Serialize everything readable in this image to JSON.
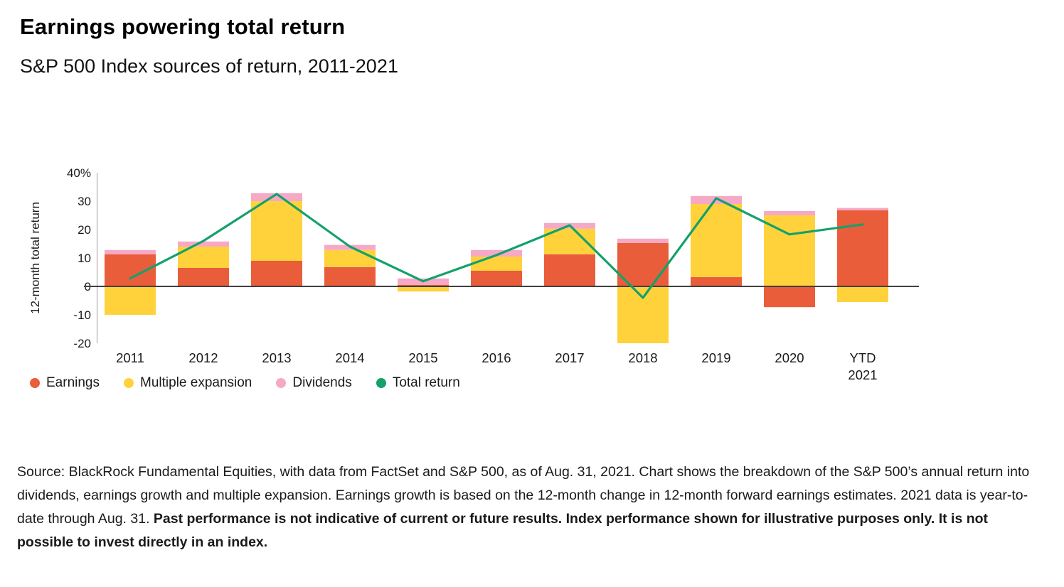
{
  "header": {
    "title": "Earnings powering total return",
    "subtitle": "S&P 500 Index sources of return, 2011-2021"
  },
  "chart_data": {
    "type": "bar",
    "stacked": true,
    "title": "Earnings powering total return",
    "subtitle": "S&P 500 Index sources of return, 2011-2021",
    "ylabel": "12-month total return",
    "ylim": [
      -20,
      40
    ],
    "grid": false,
    "legend_position": "bottom",
    "yticks": [
      {
        "value": 40,
        "label": "40%"
      },
      {
        "value": 30,
        "label": "30"
      },
      {
        "value": 20,
        "label": "20"
      },
      {
        "value": 10,
        "label": "10"
      },
      {
        "value": 0,
        "label": "0"
      },
      {
        "value": -10,
        "label": "-10"
      },
      {
        "value": -20,
        "label": "-20"
      }
    ],
    "categories": [
      "2011",
      "2012",
      "2013",
      "2014",
      "2015",
      "2016",
      "2017",
      "2018",
      "2019",
      "2020",
      "YTD\n2021"
    ],
    "series": [
      {
        "name": "Earnings",
        "type": "bar",
        "color": "#EA5D3B",
        "values": [
          11.3,
          6.5,
          9,
          6.8,
          0.5,
          5.5,
          11.3,
          15.3,
          3.3,
          -7.3,
          26.8
        ]
      },
      {
        "name": "Multiple expansion",
        "type": "bar",
        "color": "#FFD23B",
        "values": [
          -10,
          7.5,
          21,
          6,
          -1.8,
          5,
          9,
          -20,
          25.7,
          25,
          -5.5
        ]
      },
      {
        "name": "Dividends",
        "type": "bar",
        "color": "#F5A9C6",
        "values": [
          1.5,
          1.8,
          2.8,
          1.8,
          2.3,
          2.3,
          2,
          1.5,
          2.8,
          1.5,
          0.8
        ]
      },
      {
        "name": "Total return",
        "type": "line",
        "color": "#14A16B",
        "values": [
          2.8,
          16,
          32.5,
          14,
          1.8,
          11,
          21.5,
          -4,
          31,
          18.3,
          21.8
        ]
      }
    ]
  },
  "footnote": {
    "regular": "Source: BlackRock Fundamental Equities, with data from FactSet and S&P 500, as of Aug. 31, 2021. Chart shows the breakdown of the S&P 500’s annual return into dividends, earnings growth and multiple expansion. Earnings growth is based on the 12-month change in 12-month forward earnings estimates. 2021 data is year-to-date through Aug. 31. ",
    "bold": "Past performance is not indicative of current or future results. Index performance shown for illustrative purposes only. It is not possible to invest directly in an index."
  }
}
